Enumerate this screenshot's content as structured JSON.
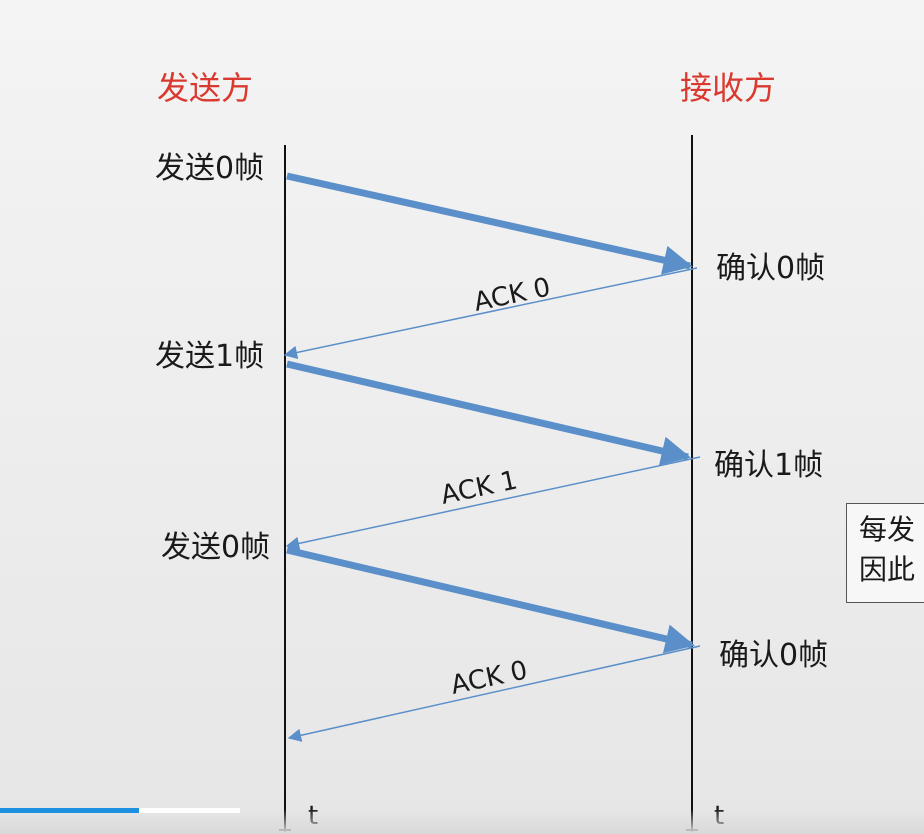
{
  "sender_title": "发送方",
  "receiver_title": "接收方",
  "title_color": "#d9392e",
  "arrow_color": "#5b8fc9",
  "events": {
    "send1": "发送0帧",
    "ack_rx1": "确认0帧",
    "ack1": "ACK 0",
    "send2": "发送1帧",
    "ack_rx2": "确认1帧",
    "ack2": "ACK 1",
    "send3": "发送0帧",
    "ack_rx3": "确认0帧",
    "ack3": "ACK 0"
  },
  "time_axis_label": "t",
  "note": {
    "line1": "每发",
    "line2": "因此"
  },
  "video_progress": 0.15
}
